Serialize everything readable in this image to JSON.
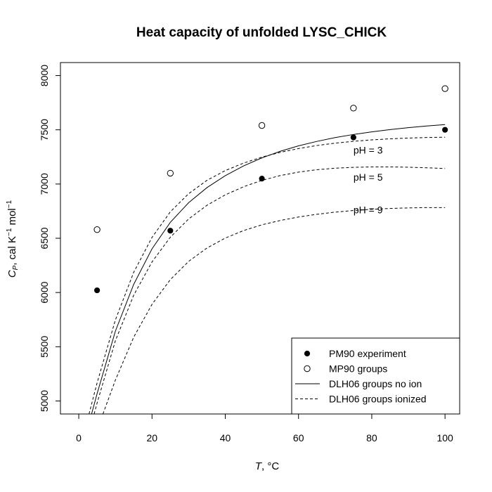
{
  "chart_data": {
    "type": "scatter",
    "title": "Heat capacity of unfolded LYSC_CHICK",
    "xlabel": {
      "symbol": "T",
      "unit": ", °C"
    },
    "ylabel": {
      "symbol": "C",
      "subscript": "P",
      "unit_a": ", cal K",
      "sup_a": "−1",
      "unit_b": " mol",
      "sup_b": "−1"
    },
    "xlim": [
      -5,
      104
    ],
    "ylim": [
      4880,
      8120
    ],
    "x_ticks": [
      0,
      20,
      40,
      60,
      80,
      100
    ],
    "x_tick_labels": [
      "0",
      "20",
      "40",
      "60",
      "80",
      "100"
    ],
    "y_ticks": [
      5000,
      5500,
      6000,
      6500,
      7000,
      7500,
      8000
    ],
    "y_tick_labels": [
      "5000",
      "5500",
      "6000",
      "6500",
      "7000",
      "7500",
      "8000"
    ],
    "legend_position": "bottom-right",
    "series": [
      {
        "name": "PM90 experiment",
        "kind": "points",
        "marker": "filled-circle",
        "x": [
          5,
          25,
          50,
          75,
          100
        ],
        "y": [
          6020,
          6570,
          7050,
          7430,
          7500
        ]
      },
      {
        "name": "MP90 groups",
        "kind": "points",
        "marker": "open-circle",
        "x": [
          5,
          25,
          50,
          75,
          100
        ],
        "y": [
          6580,
          7100,
          7540,
          7700,
          7880
        ]
      },
      {
        "name": "DLH06 groups no ion",
        "kind": "line",
        "style": "solid",
        "x": [
          3.5,
          5,
          10,
          15,
          20,
          25,
          30,
          35,
          40,
          45,
          50,
          55,
          60,
          65,
          70,
          75,
          80,
          85,
          90,
          95,
          100
        ],
        "y": [
          4880,
          5066,
          5644,
          6075,
          6403,
          6647,
          6828,
          6967,
          7077,
          7167,
          7241,
          7302,
          7352,
          7393,
          7428,
          7457,
          7481,
          7502,
          7520,
          7535,
          7548
        ]
      },
      {
        "name": "DLH06 groups ionized",
        "kind": "line",
        "style": "dashed",
        "x": [
          2.8,
          5,
          10,
          15,
          20,
          25,
          30,
          35,
          40,
          45,
          50,
          55,
          60,
          65,
          70,
          75,
          80,
          85,
          90,
          95,
          100
        ],
        "y": [
          4880,
          5166,
          5747,
          6186,
          6508,
          6744,
          6911,
          7034,
          7124,
          7193,
          7248,
          7292,
          7327,
          7355,
          7377,
          7394,
          7407,
          7417,
          7424,
          7429,
          7432
        ]
      },
      {
        "name": "",
        "kind": "line",
        "style": "dashed",
        "legend": false,
        "x": [
          4.2,
          5,
          10,
          15,
          20,
          25,
          30,
          35,
          40,
          45,
          50,
          55,
          60,
          65,
          70,
          75,
          80,
          85,
          90,
          95,
          100
        ],
        "y": [
          4880,
          4980,
          5555,
          5975,
          6282,
          6510,
          6678,
          6804,
          6900,
          6975,
          7034,
          7078,
          7110,
          7132,
          7146,
          7154,
          7158,
          7158,
          7155,
          7150,
          7143
        ]
      },
      {
        "name": "",
        "kind": "line",
        "style": "dashed",
        "legend": false,
        "x": [
          6.6,
          10,
          15,
          20,
          25,
          30,
          35,
          40,
          45,
          50,
          55,
          60,
          65,
          70,
          75,
          80,
          85,
          90,
          95,
          100
        ],
        "y": [
          4880,
          5193,
          5588,
          5891,
          6119,
          6287,
          6410,
          6502,
          6571,
          6624,
          6664,
          6696,
          6721,
          6741,
          6756,
          6767,
          6775,
          6780,
          6783,
          6783
        ]
      }
    ],
    "annotations": [
      {
        "text": "pH = 3",
        "x": 75,
        "y": 7280
      },
      {
        "text": "pH = 5",
        "x": 75,
        "y": 7030
      },
      {
        "text": "pH = 9",
        "x": 75,
        "y": 6730
      }
    ]
  }
}
